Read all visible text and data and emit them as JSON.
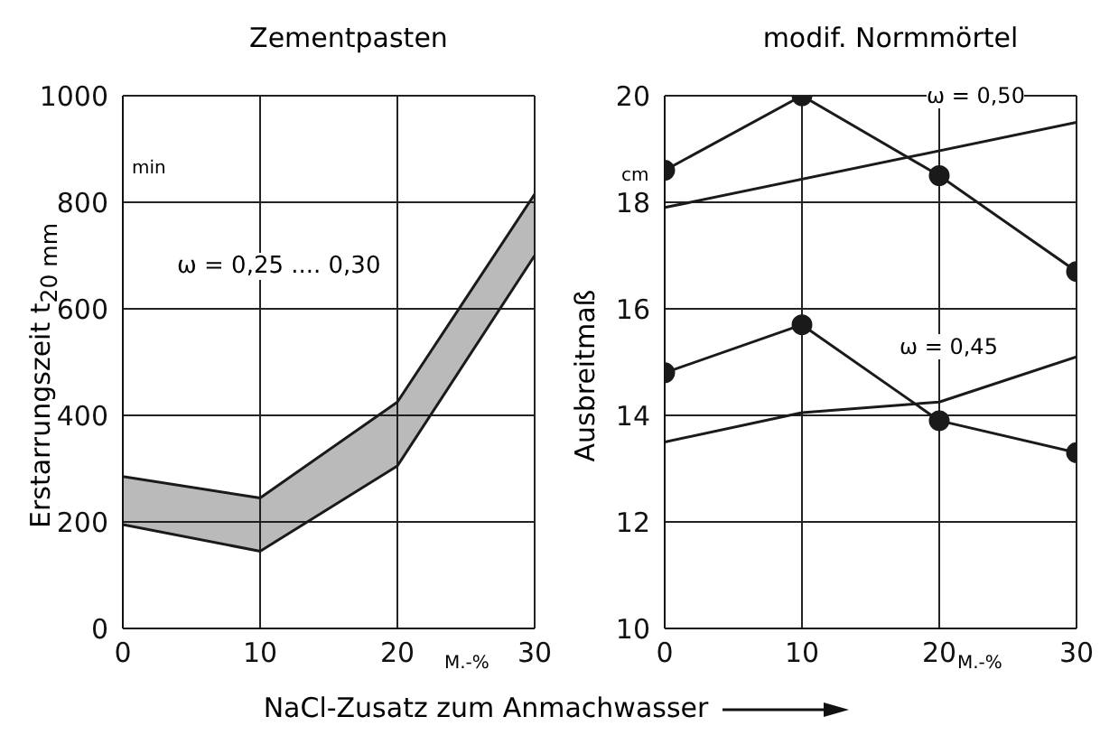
{
  "chart_data": [
    {
      "type": "line",
      "title": "Zementpasten",
      "ylabel": "Erstarrungszeit  t$_{20 mm}$",
      "xlabel": "NaCl-Zusatz zum Anmachwasser",
      "x": [
        0,
        10,
        20,
        30
      ],
      "xlim": [
        0,
        30
      ],
      "xticks": [
        0,
        10,
        20,
        30
      ],
      "ylim": [
        0,
        1000
      ],
      "yticks": [
        0,
        200,
        400,
        600,
        800,
        1000
      ],
      "grid": true,
      "annotations": [
        "ω = 0,25 .... 0,30",
        "min",
        "M.-%"
      ],
      "series": [
        {
          "color": "#1a1a1a",
          "values": [
            285,
            245,
            425,
            815
          ],
          "lower": [
            195,
            145,
            305,
            700
          ],
          "upper": [
            285,
            245,
            425,
            815
          ]
        },
        {
          "color": "#1a1a1a",
          "values": [
            195,
            145,
            305,
            700
          ]
        }
      ]
    },
    {
      "type": "line",
      "title": "modif. Normmörtel",
      "ylabel": "Ausbreitmaß",
      "x": [
        0,
        10,
        20,
        30
      ],
      "xlim": [
        0,
        30
      ],
      "xticks": [
        0,
        10,
        20,
        30
      ],
      "ylim": [
        10,
        20
      ],
      "yticks": [
        10,
        12,
        14,
        16,
        18,
        20
      ],
      "grid": true,
      "annotations": [
        "ω = 0,50",
        "ω = 0,45",
        "cm",
        "M.-%"
      ],
      "series": [
        {
          "color": "#1a1a1a",
          "marker": "circle",
          "values": [
            18.6,
            20,
            18.5,
            16.7
          ]
        },
        {
          "color": "#1a1a1a",
          "marker": "none",
          "x": [
            0,
            30
          ],
          "values": [
            17.9,
            19.5
          ]
        },
        {
          "color": "#1a1a1a",
          "marker": "circle",
          "values": [
            14.8,
            15.7,
            13.9,
            13.3
          ]
        },
        {
          "color": "#1a1a1a",
          "marker": "none",
          "x": [
            0,
            10,
            20,
            30
          ],
          "values": [
            13.5,
            14.05,
            14.25,
            15.1
          ]
        }
      ]
    }
  ]
}
